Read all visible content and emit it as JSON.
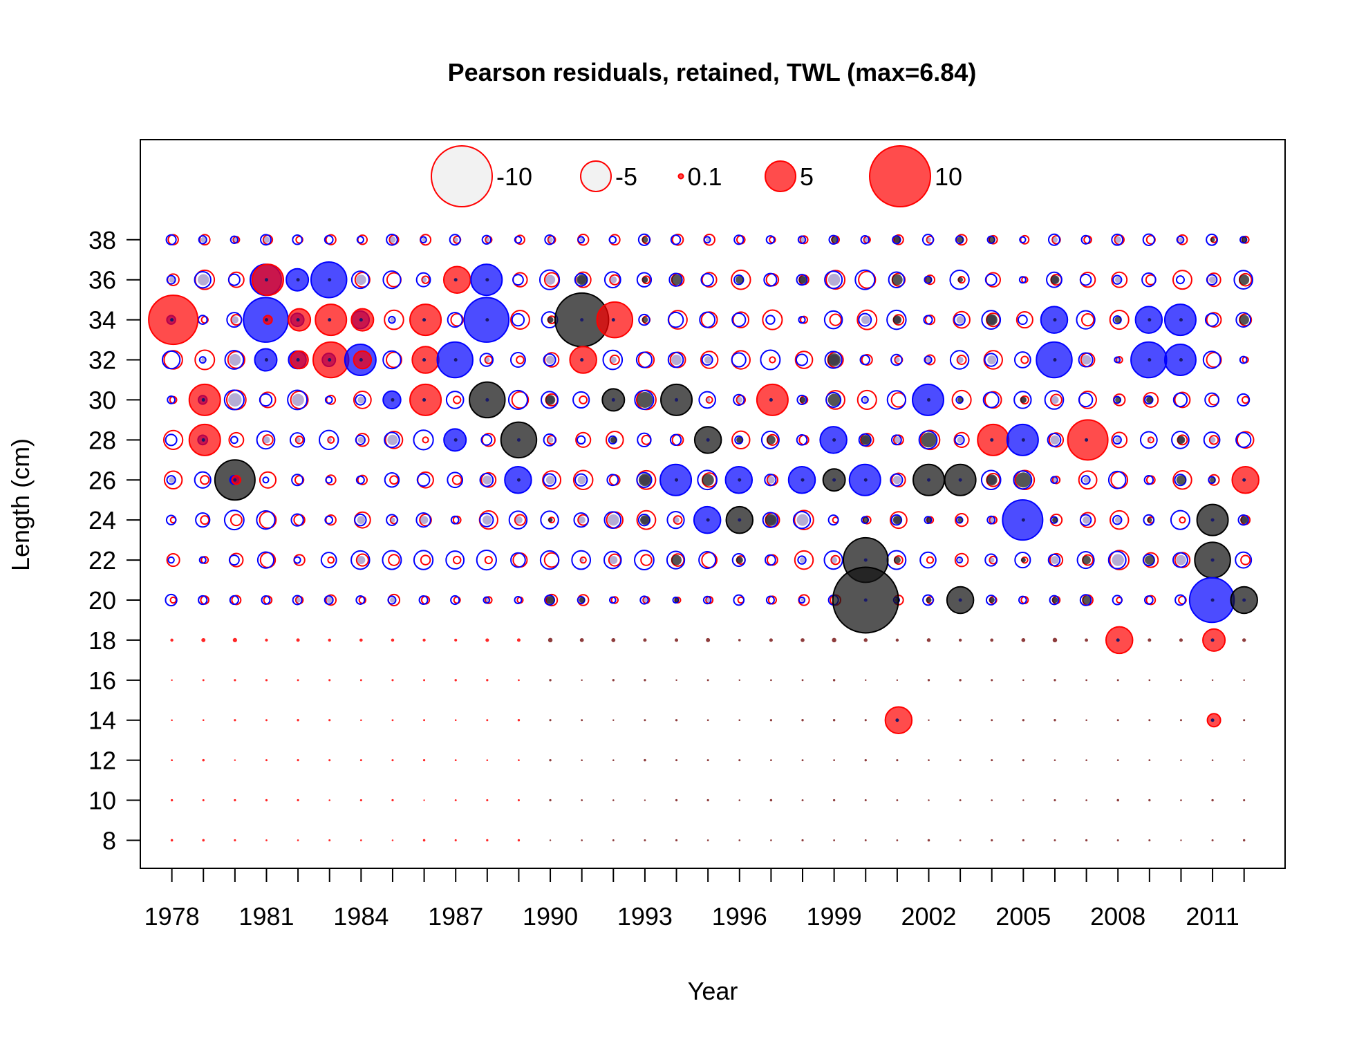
{
  "chart_data": {
    "type": "scatter",
    "title": "Pearson residuals, retained, TWL (max=6.84)",
    "xlabel": "Year",
    "ylabel": "Length (cm)",
    "xlim": [
      1977,
      2013.3
    ],
    "ylim": [
      6.6,
      43
    ],
    "x_ticks": [
      1978,
      1981,
      1984,
      1987,
      1990,
      1993,
      1996,
      1999,
      2002,
      2005,
      2008,
      2011
    ],
    "y_ticks": [
      8,
      10,
      12,
      14,
      16,
      18,
      20,
      22,
      24,
      26,
      28,
      30,
      32,
      34,
      36,
      38
    ],
    "years": [
      1978,
      1979,
      1980,
      1981,
      1982,
      1983,
      1984,
      1985,
      1986,
      1987,
      1988,
      1989,
      1990,
      1991,
      1992,
      1993,
      1994,
      1995,
      1996,
      1997,
      1998,
      1999,
      2000,
      2001,
      2002,
      2003,
      2004,
      2005,
      2006,
      2007,
      2008,
      2009,
      2010,
      2011,
      2012
    ],
    "lengths": [
      8,
      10,
      12,
      14,
      16,
      18,
      20,
      22,
      24,
      26,
      28,
      30,
      32,
      34,
      36,
      38
    ],
    "colors": {
      "positive": "#ff0000",
      "negative": "#0000ff",
      "overlap": "#1a1a1a",
      "positive_fill": "rgba(255,0,0,0.7)",
      "negative_fill": "rgba(0,0,255,0.7)",
      "overlap_fill": "rgba(20,20,20,0.72)"
    },
    "legend": {
      "placement": "top",
      "entries": [
        {
          "label": "-10",
          "value": -10
        },
        {
          "label": "-5",
          "value": -5
        },
        {
          "label": "0.1",
          "value": 0.1
        },
        {
          "label": "5",
          "value": 5
        },
        {
          "label": "10",
          "value": 10
        }
      ]
    },
    "residuals": [
      {
        "year": 1978,
        "length": 34,
        "red": 5,
        "blue": 0.5
      },
      {
        "year": 1979,
        "length": 30,
        "red": 3,
        "blue": 0.5
      },
      {
        "year": 1979,
        "length": 28,
        "red": 3,
        "blue": 0.6
      },
      {
        "year": 1980,
        "length": 26,
        "red": 0.5,
        "blue": 0.5,
        "black": 4
      },
      {
        "year": 1981,
        "length": 36,
        "red": 3,
        "blue": 3
      },
      {
        "year": 1981,
        "length": 34,
        "red": 0.5,
        "blue": 4.5
      },
      {
        "year": 1981,
        "length": 32,
        "blue": 2
      },
      {
        "year": 1982,
        "length": 36,
        "blue": 2
      },
      {
        "year": 1982,
        "length": 34,
        "red": 2,
        "blue": 1
      },
      {
        "year": 1982,
        "length": 32,
        "red": 1.5,
        "blue": 1.5
      },
      {
        "year": 1983,
        "length": 36,
        "blue": 3.5
      },
      {
        "year": 1983,
        "length": 34,
        "red": 3
      },
      {
        "year": 1983,
        "length": 32,
        "red": 3.5,
        "blue": 1
      },
      {
        "year": 1984,
        "length": 34,
        "red": 2,
        "blue": 1.5
      },
      {
        "year": 1984,
        "length": 32,
        "red": 1.5,
        "blue": 3
      },
      {
        "year": 1985,
        "length": 30,
        "blue": 1.5
      },
      {
        "year": 1986,
        "length": 34,
        "red": 3
      },
      {
        "year": 1986,
        "length": 32,
        "red": 2.5
      },
      {
        "year": 1986,
        "length": 30,
        "red": 3
      },
      {
        "year": 1987,
        "length": 36,
        "red": 2.5
      },
      {
        "year": 1987,
        "length": 32,
        "blue": 3.5
      },
      {
        "year": 1987,
        "length": 28,
        "blue": 2
      },
      {
        "year": 1988,
        "length": 36,
        "blue": 3
      },
      {
        "year": 1988,
        "length": 34,
        "blue": 4.5
      },
      {
        "year": 1988,
        "length": 30,
        "black": 3.5
      },
      {
        "year": 1989,
        "length": 28,
        "black": 3.5
      },
      {
        "year": 1989,
        "length": 26,
        "blue": 2.5
      },
      {
        "year": 1991,
        "length": 34,
        "black": 5.5
      },
      {
        "year": 1991,
        "length": 32,
        "red": 2.5
      },
      {
        "year": 1992,
        "length": 34,
        "red": 3.5
      },
      {
        "year": 1992,
        "length": 30,
        "black": 2
      },
      {
        "year": 1994,
        "length": 30,
        "black": 3
      },
      {
        "year": 1994,
        "length": 26,
        "blue": 3
      },
      {
        "year": 1995,
        "length": 28,
        "black": 2.5
      },
      {
        "year": 1995,
        "length": 24,
        "blue": 2.5
      },
      {
        "year": 1996,
        "length": 26,
        "blue": 2.5
      },
      {
        "year": 1996,
        "length": 24,
        "black": 2.5
      },
      {
        "year": 1997,
        "length": 30,
        "red": 3
      },
      {
        "year": 1998,
        "length": 26,
        "blue": 2.5
      },
      {
        "year": 1999,
        "length": 28,
        "blue": 2.5
      },
      {
        "year": 1999,
        "length": 26,
        "black": 2
      },
      {
        "year": 2000,
        "length": 26,
        "blue": 3
      },
      {
        "year": 2000,
        "length": 22,
        "black": 4.5
      },
      {
        "year": 2000,
        "length": 20,
        "black": 6.84
      },
      {
        "year": 2001,
        "length": 14,
        "red": 2.5
      },
      {
        "year": 2002,
        "length": 30,
        "blue": 3
      },
      {
        "year": 2002,
        "length": 26,
        "black": 3
      },
      {
        "year": 2003,
        "length": 26,
        "black": 3
      },
      {
        "year": 2003,
        "length": 20,
        "black": 2.5
      },
      {
        "year": 2004,
        "length": 28,
        "red": 3
      },
      {
        "year": 2005,
        "length": 24,
        "blue": 4
      },
      {
        "year": 2005,
        "length": 28,
        "blue": 3
      },
      {
        "year": 2006,
        "length": 32,
        "blue": 3.5
      },
      {
        "year": 2006,
        "length": 34,
        "blue": 2.5
      },
      {
        "year": 2007,
        "length": 28,
        "red": 4
      },
      {
        "year": 2008,
        "length": 18,
        "red": 2.5
      },
      {
        "year": 2009,
        "length": 32,
        "blue": 3.5
      },
      {
        "year": 2009,
        "length": 34,
        "blue": 2.5
      },
      {
        "year": 2010,
        "length": 34,
        "blue": 3
      },
      {
        "year": 2010,
        "length": 32,
        "blue": 3
      },
      {
        "year": 2011,
        "length": 22,
        "black": 3.5
      },
      {
        "year": 2011,
        "length": 20,
        "blue": 4.5
      },
      {
        "year": 2011,
        "length": 24,
        "black": 3
      },
      {
        "year": 2011,
        "length": 18,
        "red": 2
      },
      {
        "year": 2011,
        "length": 14,
        "red": 1
      },
      {
        "year": 2012,
        "length": 20,
        "black": 2.5
      },
      {
        "year": 2012,
        "length": 26,
        "red": 2.5
      }
    ]
  }
}
